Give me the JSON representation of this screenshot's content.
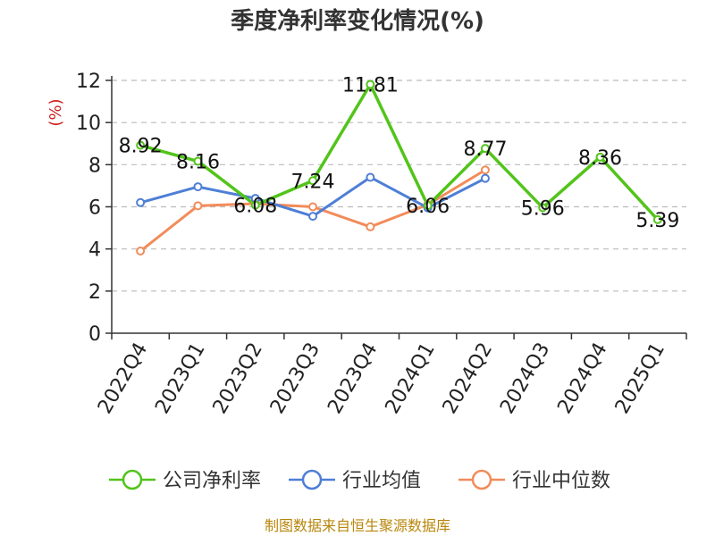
{
  "chart_data": {
    "type": "line",
    "title": "季度净利率变化情况(%)",
    "ylabel": "(%)",
    "xlabel": "",
    "categories": [
      "2022Q4",
      "2023Q1",
      "2023Q2",
      "2023Q3",
      "2023Q4",
      "2024Q1",
      "2024Q2",
      "2024Q3",
      "2024Q4",
      "2025Q1"
    ],
    "ylim": [
      0,
      12
    ],
    "yticks": [
      0,
      2,
      4,
      6,
      8,
      10,
      12
    ],
    "grid": true,
    "legend_position": "bottom",
    "series": [
      {
        "name": "公司净利率",
        "color": "#52c41a",
        "values": [
          8.92,
          8.16,
          6.08,
          7.24,
          11.81,
          6.06,
          8.77,
          5.96,
          8.36,
          5.39
        ],
        "labels": [
          "8.92",
          "8.16",
          "6.08",
          "7.24",
          "11.81",
          "6.06",
          "8.77",
          "5.96",
          "8.36",
          "5.39"
        ]
      },
      {
        "name": "行业均值",
        "color": "#4e7fd6",
        "values": [
          6.2,
          6.95,
          6.4,
          5.55,
          7.4,
          5.95,
          7.35,
          null,
          null,
          null
        ]
      },
      {
        "name": "行业中位数",
        "color": "#f28c5a",
        "values": [
          3.9,
          6.05,
          6.15,
          6.0,
          5.05,
          6.1,
          7.75,
          null,
          null,
          null
        ]
      }
    ]
  },
  "source_text": "制图数据来自恒生聚源数据库"
}
